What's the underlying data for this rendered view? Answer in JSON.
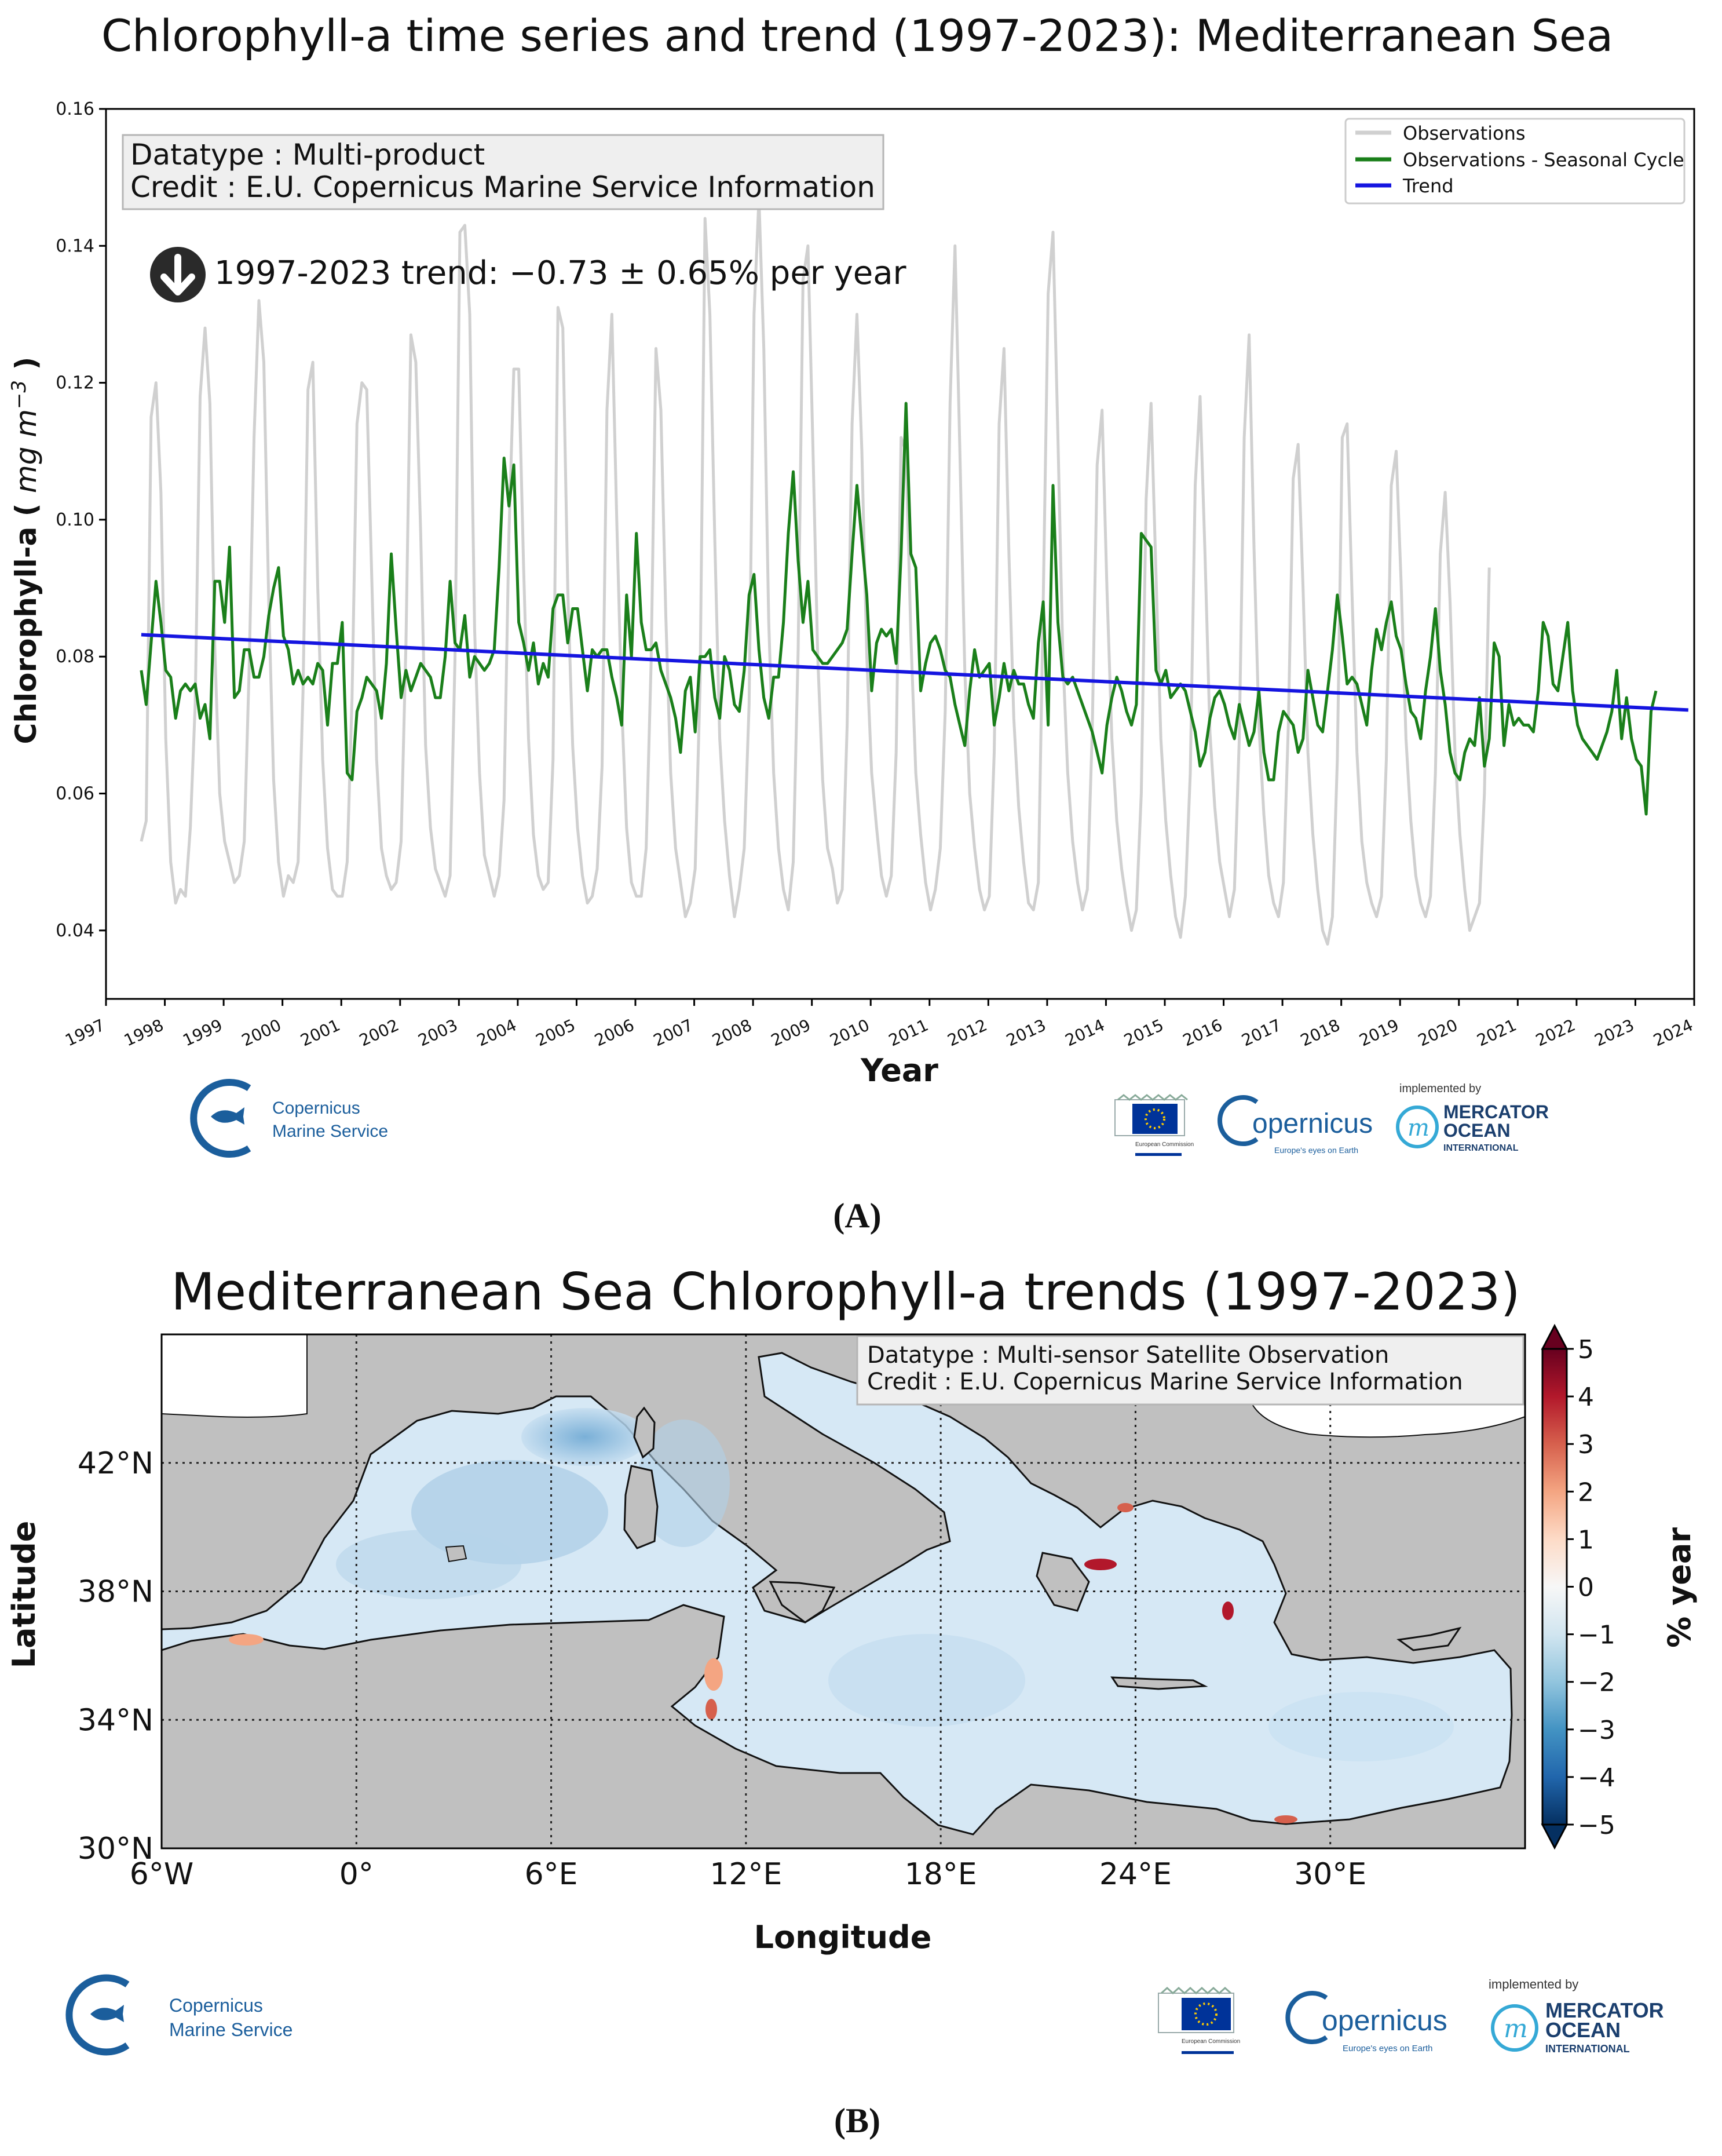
{
  "chart_data": [
    {
      "type": "line",
      "panel_label": "(A)",
      "title": "Chlorophyll-a time series and trend (1997-2023): Mediterranean Sea",
      "xlabel": "Year",
      "ylabel_main": "Chlorophyll-a (",
      "ylabel_units": "mg m",
      "ylabel_exp": "−3",
      "ylabel_close": ")",
      "xlim": [
        1997,
        2024
      ],
      "ylim": [
        0.03,
        0.16
      ],
      "x_ticks": [
        "1997",
        "1998",
        "1999",
        "2000",
        "2001",
        "2002",
        "2003",
        "2004",
        "2005",
        "2006",
        "2007",
        "2008",
        "2009",
        "2010",
        "2011",
        "2012",
        "2013",
        "2014",
        "2015",
        "2016",
        "2017",
        "2018",
        "2019",
        "2020",
        "2021",
        "2022",
        "2023",
        "2024"
      ],
      "y_ticks": [
        "0.04",
        "0.06",
        "0.08",
        "0.10",
        "0.12",
        "0.14",
        "0.16"
      ],
      "info_box": [
        "Datatype : Multi-product",
        "Credit : E.U. Copernicus Marine Service Information"
      ],
      "trend_text": "1997-2023 trend: −0.73 ± 0.65% per year",
      "legend": [
        {
          "label": "Observations",
          "color": "#d0d0d0"
        },
        {
          "label": "Observations - Seasonal Cycle",
          "color": "#1a7f1a"
        },
        {
          "label": "Trend",
          "color": "#1515e0"
        }
      ],
      "series": [
        {
          "name": "Observations",
          "color": "#d0d0d0",
          "values": [
            0.053,
            0.056,
            0.115,
            0.12,
            0.104,
            0.068,
            0.05,
            0.044,
            0.046,
            0.045,
            0.055,
            0.073,
            0.118,
            0.128,
            0.117,
            0.081,
            0.06,
            0.053,
            0.05,
            0.047,
            0.048,
            0.053,
            0.078,
            0.112,
            0.132,
            0.123,
            0.088,
            0.062,
            0.05,
            0.045,
            0.048,
            0.047,
            0.05,
            0.075,
            0.119,
            0.123,
            0.09,
            0.065,
            0.052,
            0.046,
            0.045,
            0.045,
            0.05,
            0.074,
            0.114,
            0.12,
            0.119,
            0.092,
            0.065,
            0.052,
            0.048,
            0.046,
            0.047,
            0.053,
            0.082,
            0.127,
            0.123,
            0.098,
            0.067,
            0.055,
            0.049,
            0.047,
            0.045,
            0.048,
            0.08,
            0.142,
            0.143,
            0.13,
            0.084,
            0.063,
            0.051,
            0.048,
            0.045,
            0.048,
            0.059,
            0.098,
            0.122,
            0.122,
            0.093,
            0.068,
            0.054,
            0.048,
            0.046,
            0.047,
            0.065,
            0.131,
            0.128,
            0.09,
            0.067,
            0.055,
            0.048,
            0.044,
            0.045,
            0.049,
            0.064,
            0.116,
            0.13,
            0.1,
            0.073,
            0.055,
            0.047,
            0.045,
            0.045,
            0.052,
            0.079,
            0.125,
            0.116,
            0.086,
            0.063,
            0.052,
            0.047,
            0.042,
            0.044,
            0.049,
            0.076,
            0.144,
            0.13,
            0.097,
            0.068,
            0.056,
            0.048,
            0.042,
            0.046,
            0.052,
            0.073,
            0.13,
            0.147,
            0.125,
            0.085,
            0.063,
            0.052,
            0.046,
            0.043,
            0.05,
            0.081,
            0.135,
            0.14,
            0.111,
            0.08,
            0.062,
            0.052,
            0.049,
            0.044,
            0.046,
            0.07,
            0.114,
            0.13,
            0.11,
            0.08,
            0.063,
            0.055,
            0.048,
            0.045,
            0.048,
            0.066,
            0.112,
            0.11,
            0.083,
            0.063,
            0.054,
            0.047,
            0.043,
            0.046,
            0.052,
            0.072,
            0.117,
            0.14,
            0.11,
            0.078,
            0.06,
            0.052,
            0.046,
            0.043,
            0.045,
            0.066,
            0.114,
            0.125,
            0.095,
            0.071,
            0.058,
            0.05,
            0.044,
            0.043,
            0.047,
            0.088,
            0.133,
            0.142,
            0.112,
            0.08,
            0.063,
            0.053,
            0.047,
            0.043,
            0.046,
            0.069,
            0.108,
            0.116,
            0.09,
            0.068,
            0.056,
            0.049,
            0.044,
            0.04,
            0.043,
            0.06,
            0.103,
            0.117,
            0.092,
            0.068,
            0.056,
            0.048,
            0.042,
            0.039,
            0.045,
            0.063,
            0.105,
            0.118,
            0.095,
            0.069,
            0.058,
            0.05,
            0.046,
            0.042,
            0.046,
            0.068,
            0.112,
            0.127,
            0.096,
            0.07,
            0.057,
            0.048,
            0.044,
            0.042,
            0.047,
            0.07,
            0.106,
            0.111,
            0.09,
            0.066,
            0.054,
            0.046,
            0.04,
            0.038,
            0.042,
            0.065,
            0.112,
            0.114,
            0.089,
            0.066,
            0.053,
            0.047,
            0.044,
            0.042,
            0.045,
            0.065,
            0.105,
            0.11,
            0.091,
            0.068,
            0.056,
            0.048,
            0.044,
            0.042,
            0.045,
            0.063,
            0.095,
            0.104,
            0.088,
            0.066,
            0.054,
            0.046,
            0.04,
            0.042,
            0.044,
            0.06,
            0.093
          ]
        },
        {
          "name": "Observations - Seasonal Cycle",
          "color": "#1a7f1a",
          "values": [
            0.078,
            0.073,
            0.082,
            0.091,
            0.085,
            0.078,
            0.077,
            0.071,
            0.075,
            0.076,
            0.075,
            0.076,
            0.071,
            0.073,
            0.068,
            0.091,
            0.091,
            0.085,
            0.096,
            0.074,
            0.075,
            0.081,
            0.081,
            0.077,
            0.077,
            0.08,
            0.086,
            0.09,
            0.093,
            0.083,
            0.081,
            0.076,
            0.078,
            0.076,
            0.077,
            0.076,
            0.079,
            0.078,
            0.07,
            0.079,
            0.079,
            0.085,
            0.063,
            0.062,
            0.072,
            0.074,
            0.077,
            0.076,
            0.075,
            0.071,
            0.079,
            0.095,
            0.084,
            0.074,
            0.078,
            0.075,
            0.077,
            0.079,
            0.078,
            0.077,
            0.074,
            0.074,
            0.08,
            0.091,
            0.082,
            0.081,
            0.086,
            0.077,
            0.08,
            0.079,
            0.078,
            0.079,
            0.081,
            0.093,
            0.109,
            0.102,
            0.108,
            0.085,
            0.082,
            0.078,
            0.082,
            0.076,
            0.079,
            0.077,
            0.087,
            0.089,
            0.089,
            0.082,
            0.087,
            0.087,
            0.081,
            0.075,
            0.081,
            0.08,
            0.081,
            0.081,
            0.077,
            0.074,
            0.07,
            0.089,
            0.08,
            0.098,
            0.085,
            0.081,
            0.081,
            0.082,
            0.078,
            0.076,
            0.074,
            0.071,
            0.066,
            0.075,
            0.077,
            0.069,
            0.08,
            0.08,
            0.081,
            0.074,
            0.071,
            0.08,
            0.078,
            0.073,
            0.072,
            0.078,
            0.089,
            0.092,
            0.081,
            0.074,
            0.071,
            0.077,
            0.077,
            0.085,
            0.098,
            0.107,
            0.094,
            0.085,
            0.091,
            0.081,
            0.08,
            0.079,
            0.079,
            0.08,
            0.081,
            0.082,
            0.084,
            0.095,
            0.105,
            0.097,
            0.089,
            0.075,
            0.082,
            0.084,
            0.083,
            0.084,
            0.079,
            0.095,
            0.117,
            0.095,
            0.093,
            0.075,
            0.079,
            0.082,
            0.083,
            0.081,
            0.078,
            0.077,
            0.073,
            0.07,
            0.067,
            0.075,
            0.081,
            0.077,
            0.078,
            0.079,
            0.07,
            0.074,
            0.079,
            0.075,
            0.078,
            0.076,
            0.076,
            0.073,
            0.071,
            0.082,
            0.088,
            0.07,
            0.105,
            0.085,
            0.077,
            0.076,
            0.077,
            0.075,
            0.073,
            0.071,
            0.069,
            0.066,
            0.063,
            0.07,
            0.074,
            0.077,
            0.075,
            0.072,
            0.07,
            0.073,
            0.098,
            0.097,
            0.096,
            0.078,
            0.076,
            0.078,
            0.074,
            0.075,
            0.076,
            0.075,
            0.072,
            0.069,
            0.064,
            0.066,
            0.071,
            0.074,
            0.075,
            0.073,
            0.07,
            0.068,
            0.073,
            0.07,
            0.067,
            0.069,
            0.075,
            0.066,
            0.062,
            0.062,
            0.069,
            0.072,
            0.071,
            0.07,
            0.066,
            0.068,
            0.078,
            0.074,
            0.07,
            0.069,
            0.075,
            0.081,
            0.089,
            0.083,
            0.076,
            0.077,
            0.076,
            0.073,
            0.07,
            0.078,
            0.084,
            0.081,
            0.085,
            0.088,
            0.083,
            0.081,
            0.076,
            0.072,
            0.071,
            0.068,
            0.075,
            0.08,
            0.087,
            0.078,
            0.073,
            0.066,
            0.063,
            0.062,
            0.066,
            0.068,
            0.067,
            0.074,
            0.064,
            0.068,
            0.082,
            0.08,
            0.067,
            0.073,
            0.07,
            0.071,
            0.07,
            0.07,
            0.069,
            0.075,
            0.085,
            0.083,
            0.076,
            0.075,
            0.08,
            0.085,
            0.075,
            0.07,
            0.068,
            0.067,
            0.066,
            0.065,
            0.067,
            0.069,
            0.072,
            0.078,
            0.068,
            0.074,
            0.068,
            0.065,
            0.064,
            0.057,
            0.072,
            0.075
          ]
        },
        {
          "name": "Trend",
          "color": "#1515e0",
          "x": [
            1997.6,
            2023.9
          ],
          "values": [
            0.0832,
            0.0722
          ]
        }
      ]
    },
    {
      "type": "heatmap",
      "panel_label": "(B)",
      "title": "Mediterranean Sea Chlorophyll-a trends (1997-2023)",
      "xlabel": "Longitude",
      "ylabel": "Latitude",
      "xlim": [
        -6,
        36
      ],
      "ylim": [
        30,
        46
      ],
      "x_ticks": [
        "6°W",
        "0°",
        "6°E",
        "12°E",
        "18°E",
        "24°E",
        "30°E"
      ],
      "x_tick_values": [
        -6,
        0,
        6,
        12,
        18,
        24,
        30
      ],
      "y_ticks": [
        "42°N",
        "38°N",
        "34°N",
        "30°N"
      ],
      "y_tick_values": [
        42,
        38,
        34,
        30
      ],
      "info_box": [
        "Datatype : Multi-sensor Satellite Observation",
        "Credit : E.U. Copernicus Marine Service Information"
      ],
      "colorbar": {
        "label": "% year",
        "range": [
          -5,
          5
        ],
        "ticks": [
          "5",
          "4",
          "3",
          "2",
          "1",
          "0",
          "−1",
          "−2",
          "−3",
          "−4",
          "−5"
        ],
        "colormap": "RdBu_r"
      }
    }
  ],
  "logos": {
    "copernicus_marine": [
      "Copernicus",
      "Marine Service"
    ],
    "eu_text": "European Commission",
    "copernicus": "opernicus",
    "copernicus_tagline": "Europe's eyes on Earth",
    "implemented_by": "implemented by",
    "mercator": [
      "MERCATOR",
      "OCEAN",
      "INTERNATIONAL"
    ]
  },
  "colors": {
    "observations": "#d0d0d0",
    "seasonal": "#1a7f1a",
    "trend": "#1515e0",
    "land": "#c0c0c0",
    "brand_blue": "#1b5e9c"
  }
}
